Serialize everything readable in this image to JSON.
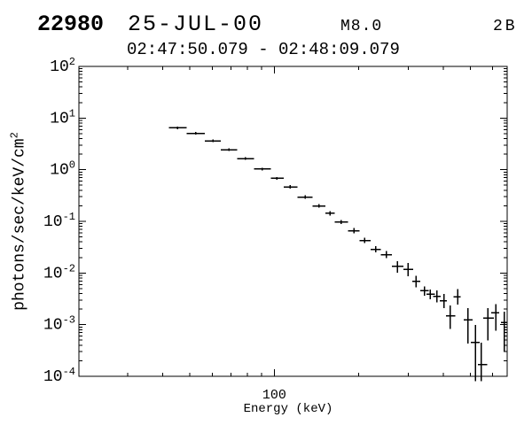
{
  "header": {
    "burst_number": "22980",
    "date": "25-JUL-00",
    "xray_class": "M8.0",
    "optical_class": "2B",
    "time_range": "02:47:50.079 - 02:48:09.079"
  },
  "colors": {
    "foreground": "#000000",
    "background": "#ffffff"
  },
  "chart_data": {
    "type": "scatter",
    "title": "",
    "xlabel": "Energy (keV)",
    "ylabel": "photons/sec/keV/cm^2",
    "ylabel_text": "photons/sec/keV/cm",
    "ylabel_sup": "2",
    "x_scale": "log",
    "y_scale": "log",
    "xlim": [
      20.1,
      676
    ],
    "ylim": [
      0.0001,
      100
    ],
    "grid": false,
    "legend": "none",
    "x_major_ticks": [
      100
    ],
    "x_major_labels": [
      "100"
    ],
    "x_minor_ticks": [
      30,
      40,
      50,
      60,
      70,
      80,
      90,
      200,
      300,
      400,
      500,
      600
    ],
    "y_major_exponents": [
      2,
      1,
      0,
      -1,
      -2,
      -3,
      -4
    ],
    "points": [
      {
        "e_lo": 42.0,
        "e": 45.2,
        "e_hi": 48.6,
        "flux_lo": 6.12,
        "flux": 6.49,
        "flux_hi": 6.89
      },
      {
        "e_lo": 48.6,
        "e": 52.4,
        "e_hi": 56.6,
        "flux_lo": 4.75,
        "flux": 5.04,
        "flux_hi": 5.35
      },
      {
        "e_lo": 56.6,
        "e": 60.4,
        "e_hi": 64.5,
        "flux_lo": 3.42,
        "flux": 3.63,
        "flux_hi": 3.85
      },
      {
        "e_lo": 64.5,
        "e": 68.9,
        "e_hi": 73.6,
        "flux_lo": 2.31,
        "flux": 2.45,
        "flux_hi": 2.6
      },
      {
        "e_lo": 73.6,
        "e": 78.9,
        "e_hi": 84.5,
        "flux_lo": 1.56,
        "flux": 1.65,
        "flux_hi": 1.75
      },
      {
        "e_lo": 84.5,
        "e": 90.6,
        "e_hi": 97.1,
        "flux_lo": 0.97,
        "flux": 1.03,
        "flux_hi": 1.09
      },
      {
        "e_lo": 97.1,
        "e": 102,
        "e_hi": 108,
        "flux_lo": 0.645,
        "flux": 0.684,
        "flux_hi": 0.726
      },
      {
        "e_lo": 108,
        "e": 114,
        "e_hi": 121,
        "flux_lo": 0.431,
        "flux": 0.466,
        "flux_hi": 0.504
      },
      {
        "e_lo": 121,
        "e": 129,
        "e_hi": 137,
        "flux_lo": 0.272,
        "flux": 0.294,
        "flux_hi": 0.318
      },
      {
        "e_lo": 137,
        "e": 144,
        "e_hi": 152,
        "flux_lo": 0.183,
        "flux": 0.198,
        "flux_hi": 0.214
      },
      {
        "e_lo": 152,
        "e": 158,
        "e_hi": 164,
        "flux_lo": 0.13,
        "flux": 0.143,
        "flux_hi": 0.158
      },
      {
        "e_lo": 164,
        "e": 173,
        "e_hi": 183,
        "flux_lo": 0.0881,
        "flux": 0.0973,
        "flux_hi": 0.107
      },
      {
        "e_lo": 183,
        "e": 192,
        "e_hi": 201,
        "flux_lo": 0.0583,
        "flux": 0.0656,
        "flux_hi": 0.0739
      },
      {
        "e_lo": 201,
        "e": 210,
        "e_hi": 220,
        "flux_lo": 0.0377,
        "flux": 0.0425,
        "flux_hi": 0.0479
      },
      {
        "e_lo": 220,
        "e": 230,
        "e_hi": 240,
        "flux_lo": 0.0249,
        "flux": 0.0286,
        "flux_hi": 0.0328
      },
      {
        "e_lo": 240,
        "e": 251,
        "e_hi": 262,
        "flux_lo": 0.0193,
        "flux": 0.0226,
        "flux_hi": 0.0265
      },
      {
        "e_lo": 262,
        "e": 275,
        "e_hi": 288,
        "flux_lo": 0.0101,
        "flux": 0.0134,
        "flux_hi": 0.0169
      },
      {
        "e_lo": 288,
        "e": 300,
        "e_hi": 312,
        "flux_lo": 0.0087,
        "flux": 0.0117,
        "flux_hi": 0.0156
      },
      {
        "e_lo": 310,
        "e": 320,
        "e_hi": 331,
        "flux_lo": 0.0053,
        "flux": 0.0069,
        "flux_hi": 0.0088
      },
      {
        "e_lo": 331,
        "e": 343,
        "e_hi": 355,
        "flux_lo": 0.0036,
        "flux": 0.0046,
        "flux_hi": 0.0055
      },
      {
        "e_lo": 349,
        "e": 360,
        "e_hi": 373,
        "flux_lo": 0.0031,
        "flux": 0.0039,
        "flux_hi": 0.0048
      },
      {
        "e_lo": 368,
        "e": 380,
        "e_hi": 392,
        "flux_lo": 0.0027,
        "flux": 0.0035,
        "flux_hi": 0.0046
      },
      {
        "e_lo": 389,
        "e": 403,
        "e_hi": 412,
        "flux_lo": 0.0021,
        "flux": 0.0029,
        "flux_hi": 0.0039
      },
      {
        "e_lo": 409,
        "e": 424,
        "e_hi": 441,
        "flux_lo": 0.00082,
        "flux": 0.00148,
        "flux_hi": 0.00235
      },
      {
        "e_lo": 435,
        "e": 450,
        "e_hi": 462,
        "flux_lo": 0.00245,
        "flux": 0.00349,
        "flux_hi": 0.00484
      },
      {
        "e_lo": 473,
        "e": 490,
        "e_hi": 509,
        "flux_lo": 0.00043,
        "flux": 0.00125,
        "flux_hi": 0.00209
      },
      {
        "e_lo": 501,
        "e": 520,
        "e_hi": 540,
        "flux_lo": 8e-05,
        "flux": 0.00045,
        "flux_hi": 0.00099
      },
      {
        "e_lo": 532,
        "e": 547,
        "e_hi": 574,
        "flux_lo": 8e-05,
        "flux": 0.00017,
        "flux_hi": 0.00045
      },
      {
        "e_lo": 555,
        "e": 576,
        "e_hi": 605,
        "flux_lo": 0.00049,
        "flux": 0.00134,
        "flux_hi": 0.00208
      },
      {
        "e_lo": 593,
        "e": 615,
        "e_hi": 634,
        "flux_lo": 0.00077,
        "flux": 0.00169,
        "flux_hi": 0.00252
      },
      {
        "e_lo": 643,
        "e": 659,
        "e_hi": 676,
        "flux_lo": 0.0003,
        "flux": 0.00111,
        "flux_hi": 0.00178
      }
    ]
  }
}
